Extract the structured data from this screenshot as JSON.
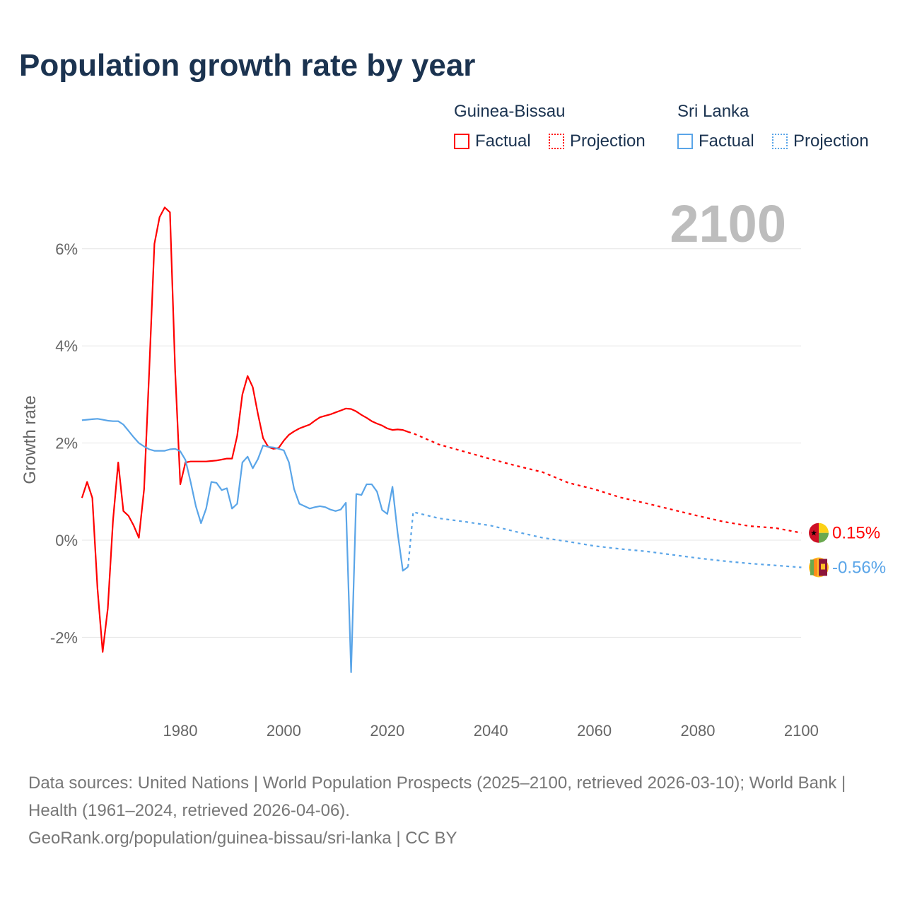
{
  "title": "Population growth rate by year",
  "legend": {
    "groups": [
      {
        "name": "Guinea-Bissau",
        "color": "#ff0000",
        "factual_label": "Factual",
        "projection_label": "Projection"
      },
      {
        "name": "Sri Lanka",
        "color": "#5aa5e8",
        "factual_label": "Factual",
        "projection_label": "Projection"
      }
    ]
  },
  "year_label": "2100",
  "source": {
    "line1": "Data sources: United Nations | World Population Prospects (2025–2100, retrieved 2026-03-10); World Bank | Health (1961–2024, retrieved 2026-04-06).",
    "line2": "GeoRank.org/population/guinea-bissau/sri-lanka | CC BY"
  },
  "chart_data": {
    "type": "line",
    "title": "Population growth rate by year",
    "ylabel": "Growth rate",
    "xlabel": "",
    "xlim": [
      1961,
      2100
    ],
    "ylim": [
      -3.2,
      7
    ],
    "grid": true,
    "x_ticks": [
      1980,
      2000,
      2020,
      2040,
      2060,
      2080,
      2100
    ],
    "x_tick_labels": [
      "1980",
      "2000",
      "2020",
      "2040",
      "2060",
      "2080",
      "2100"
    ],
    "y_ticks": [
      -2,
      0,
      2,
      4,
      6
    ],
    "y_tick_labels": [
      "-2%",
      "0%",
      "2%",
      "4%",
      "6%"
    ],
    "legend_placement": "top-right",
    "series": [
      {
        "name": "Guinea-Bissau",
        "color": "#ff0000",
        "end_label": "0.15%",
        "factual": {
          "x": [
            1961,
            1962,
            1963,
            1964,
            1965,
            1966,
            1967,
            1968,
            1969,
            1970,
            1971,
            1972,
            1973,
            1974,
            1975,
            1976,
            1977,
            1978,
            1979,
            1980,
            1981,
            1982,
            1983,
            1984,
            1985,
            1986,
            1987,
            1988,
            1989,
            1990,
            1991,
            1992,
            1993,
            1994,
            1995,
            1996,
            1997,
            1998,
            1999,
            2000,
            2001,
            2002,
            2003,
            2004,
            2005,
            2006,
            2007,
            2008,
            2009,
            2010,
            2011,
            2012,
            2013,
            2014,
            2015,
            2016,
            2017,
            2018,
            2019,
            2020,
            2021,
            2022,
            2023,
            2024
          ],
          "y": [
            0.87,
            1.2,
            0.87,
            -1.0,
            -2.3,
            -1.4,
            0.4,
            1.6,
            0.6,
            0.5,
            0.3,
            0.05,
            1.05,
            3.5,
            6.1,
            6.65,
            6.85,
            6.75,
            3.5,
            1.15,
            1.6,
            1.62,
            1.62,
            1.62,
            1.62,
            1.63,
            1.64,
            1.66,
            1.68,
            1.68,
            2.15,
            3.0,
            3.38,
            3.15,
            2.6,
            2.1,
            1.92,
            1.88,
            1.9,
            2.05,
            2.17,
            2.24,
            2.3,
            2.34,
            2.38,
            2.46,
            2.53,
            2.56,
            2.59,
            2.63,
            2.67,
            2.71,
            2.7,
            2.65,
            2.58,
            2.52,
            2.45,
            2.4,
            2.36,
            2.3,
            2.27,
            2.28,
            2.27,
            2.23
          ]
        },
        "projection": {
          "x": [
            2024,
            2025,
            2030,
            2035,
            2040,
            2045,
            2050,
            2055,
            2060,
            2065,
            2070,
            2075,
            2080,
            2085,
            2090,
            2095,
            2100
          ],
          "y": [
            2.23,
            2.2,
            1.97,
            1.82,
            1.67,
            1.53,
            1.4,
            1.18,
            1.05,
            0.88,
            0.76,
            0.63,
            0.5,
            0.38,
            0.29,
            0.25,
            0.15
          ]
        }
      },
      {
        "name": "Sri Lanka",
        "color": "#5aa5e8",
        "end_label": "-0.56%",
        "factual": {
          "x": [
            1961,
            1962,
            1963,
            1964,
            1965,
            1966,
            1967,
            1968,
            1969,
            1970,
            1971,
            1972,
            1973,
            1974,
            1975,
            1976,
            1977,
            1978,
            1979,
            1980,
            1981,
            1982,
            1983,
            1984,
            1985,
            1986,
            1987,
            1988,
            1989,
            1990,
            1991,
            1992,
            1993,
            1994,
            1995,
            1996,
            1997,
            1998,
            1999,
            2000,
            2001,
            2002,
            2003,
            2004,
            2005,
            2006,
            2007,
            2008,
            2009,
            2010,
            2011,
            2012,
            2013,
            2014,
            2015,
            2016,
            2017,
            2018,
            2019,
            2020,
            2021,
            2022,
            2023,
            2024
          ],
          "y": [
            2.47,
            2.48,
            2.49,
            2.5,
            2.48,
            2.46,
            2.45,
            2.45,
            2.38,
            2.25,
            2.12,
            2.0,
            1.93,
            1.87,
            1.84,
            1.84,
            1.84,
            1.87,
            1.88,
            1.83,
            1.65,
            1.2,
            0.7,
            0.35,
            0.65,
            1.2,
            1.18,
            1.03,
            1.07,
            0.65,
            0.75,
            1.6,
            1.72,
            1.48,
            1.67,
            1.95,
            1.92,
            1.91,
            1.88,
            1.85,
            1.6,
            1.05,
            0.75,
            0.7,
            0.65,
            0.68,
            0.7,
            0.68,
            0.63,
            0.6,
            0.63,
            0.77,
            -2.72,
            0.95,
            0.93,
            1.15,
            1.15,
            1.0,
            0.62,
            0.54,
            1.1,
            0.15,
            -0.63,
            -0.55
          ]
        },
        "projection": {
          "x": [
            2024,
            2025,
            2030,
            2035,
            2040,
            2045,
            2050,
            2055,
            2060,
            2065,
            2070,
            2075,
            2080,
            2085,
            2090,
            2095,
            2100
          ],
          "y": [
            -0.55,
            0.58,
            0.45,
            0.38,
            0.3,
            0.17,
            0.05,
            -0.03,
            -0.12,
            -0.18,
            -0.23,
            -0.3,
            -0.37,
            -0.43,
            -0.48,
            -0.52,
            -0.56
          ]
        }
      }
    ]
  }
}
